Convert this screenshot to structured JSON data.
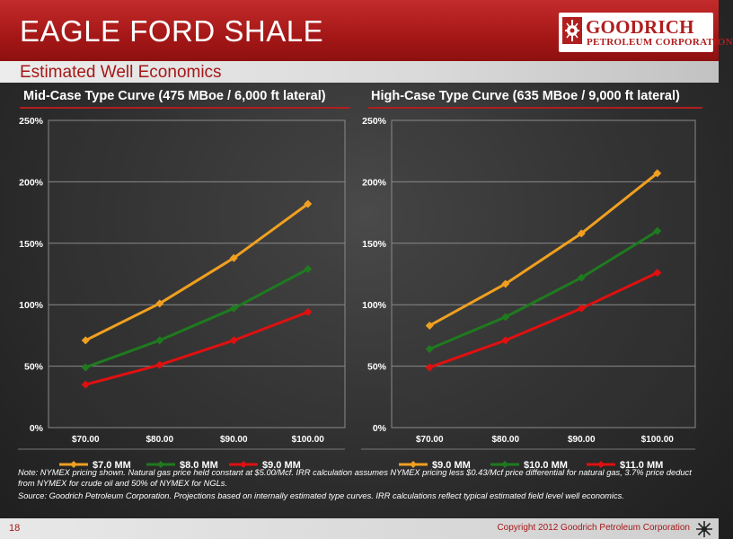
{
  "header": {
    "title": "EAGLE FORD SHALE",
    "subtitle": "Estimated Well Economics",
    "logo_line1": "GOODRICH",
    "logo_line2": "PETROLEUM CORPORATION"
  },
  "colors": {
    "brand_red": "#a51717",
    "series": [
      "#f0a020",
      "#1f7a1f",
      "#e01010"
    ]
  },
  "chart_data": [
    {
      "type": "line",
      "title": "Mid-Case Type Curve (475 MBoe / 6,000 ft lateral)",
      "categories": [
        "$70.00",
        "$80.00",
        "$90.00",
        "$100.00"
      ],
      "ylim": [
        0,
        250
      ],
      "yticks": [
        "0%",
        "50%",
        "100%",
        "150%",
        "200%",
        "250%"
      ],
      "grid": true,
      "legend_position": "bottom",
      "series": [
        {
          "name": "$7.0 MM",
          "values": [
            71,
            101,
            138,
            182
          ]
        },
        {
          "name": "$8.0 MM",
          "values": [
            49,
            71,
            97,
            129
          ]
        },
        {
          "name": "$9.0 MM",
          "values": [
            35,
            51,
            71,
            94
          ]
        }
      ]
    },
    {
      "type": "line",
      "title": "High-Case Type Curve (635 MBoe / 9,000 ft lateral)",
      "categories": [
        "$70.00",
        "$80.00",
        "$90.00",
        "$100.00"
      ],
      "ylim": [
        0,
        250
      ],
      "yticks": [
        "0%",
        "50%",
        "100%",
        "150%",
        "200%",
        "250%"
      ],
      "grid": true,
      "legend_position": "bottom",
      "series": [
        {
          "name": "$9.0 MM",
          "values": [
            83,
            117,
            158,
            207
          ]
        },
        {
          "name": "$10.0 MM",
          "values": [
            64,
            90,
            122,
            160
          ]
        },
        {
          "name": "$11.0 MM",
          "values": [
            49,
            71,
            97,
            126
          ]
        }
      ]
    }
  ],
  "notes": {
    "note": "Note: NYMEX pricing shown.  Natural gas price held constant at $5.00/Mcf.  IRR calculation assumes NYMEX pricing less $0.43/Mcf price differential for natural gas, 3.7% price deduct from NYMEX for crude oil and 50% of NYMEX for NGLs.",
    "source": "Source: Goodrich Petroleum Corporation. Projections based on internally estimated type curves.  IRR calculations reflect typical estimated field level well economics."
  },
  "footer": {
    "page": "18",
    "copyright": "Copyright 2012 Goodrich Petroleum Corporation"
  }
}
